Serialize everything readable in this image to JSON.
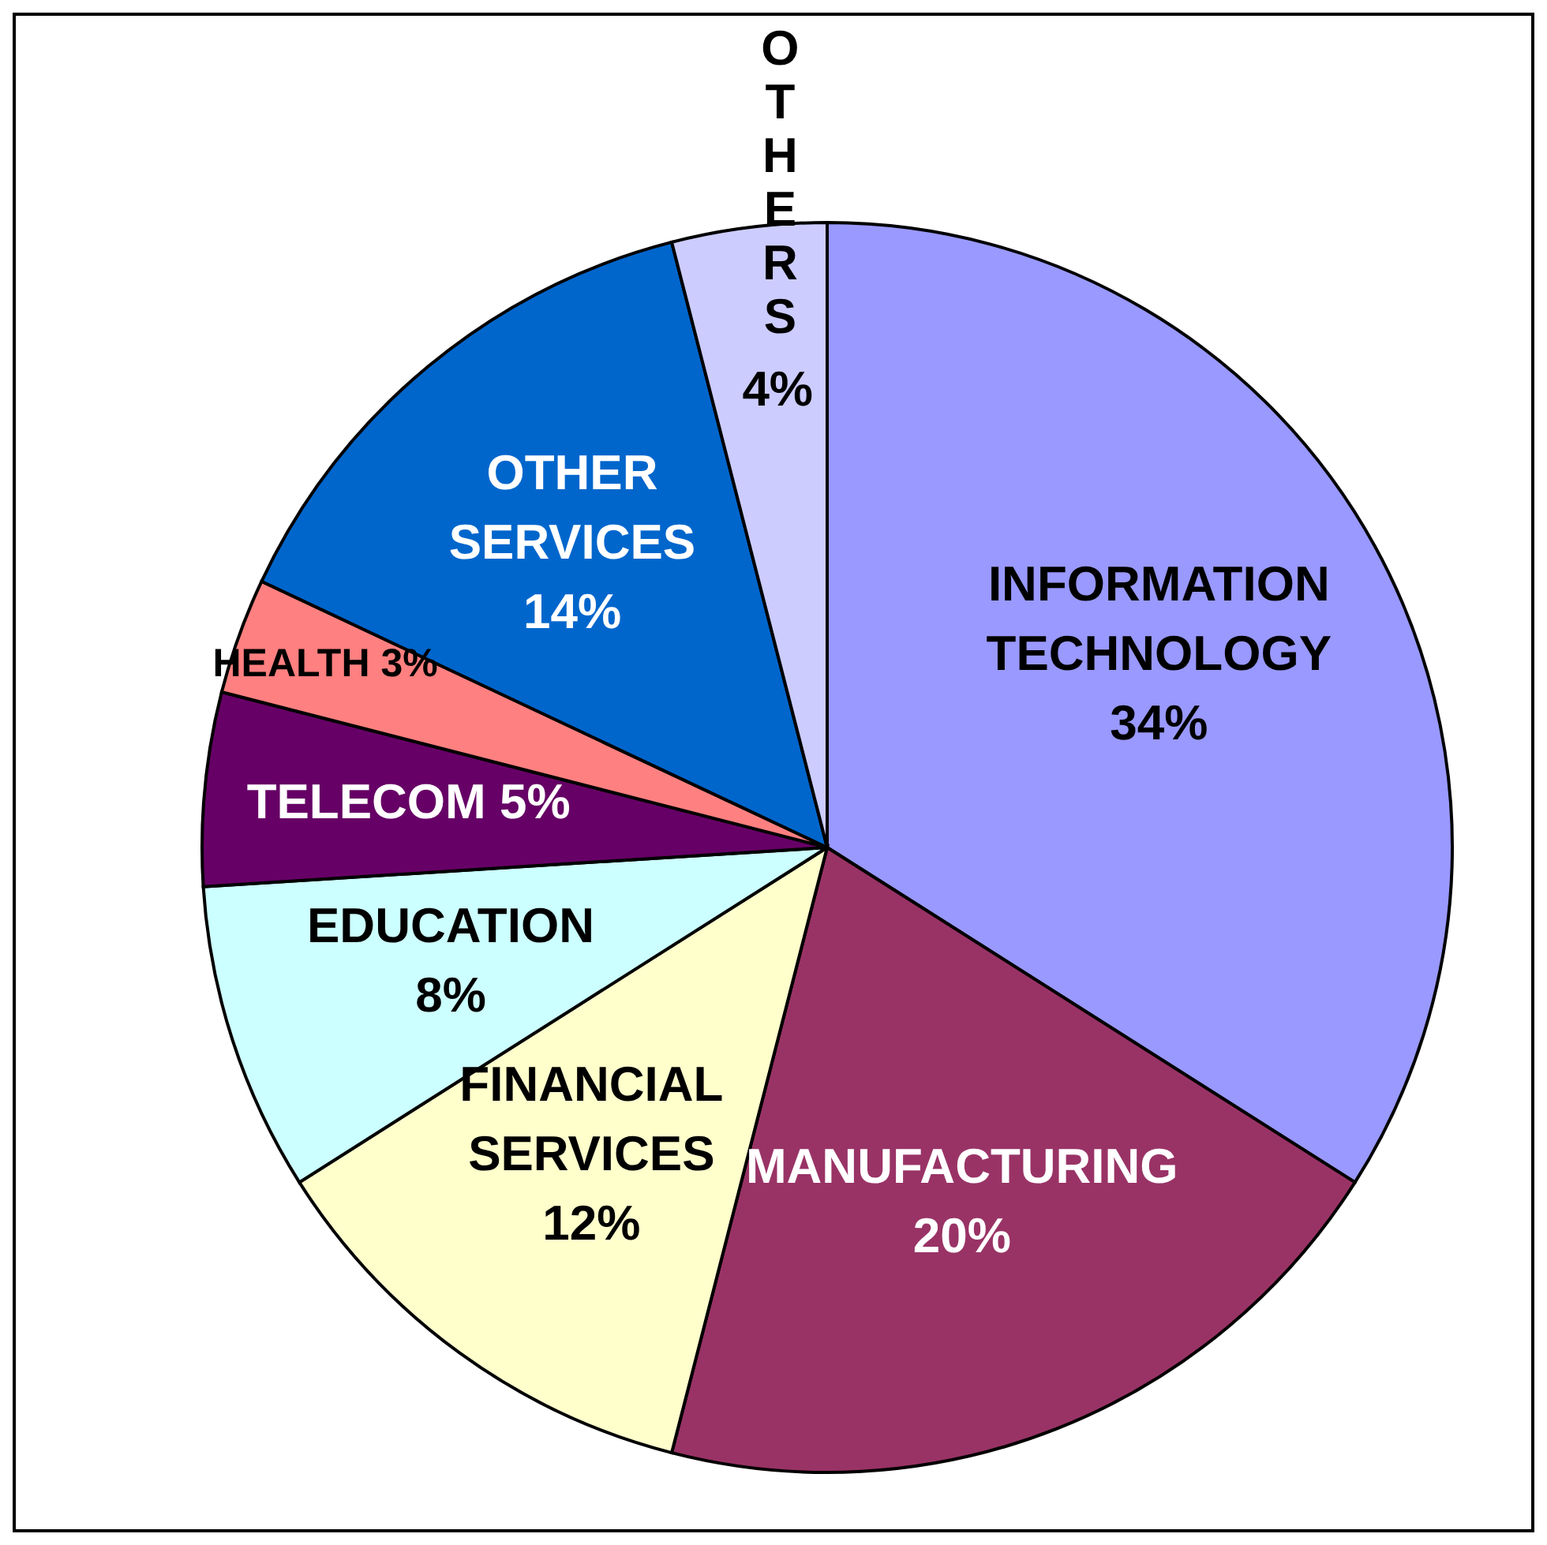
{
  "chart_data": {
    "type": "pie",
    "categories": [
      "INFORMATION TECHNOLOGY",
      "MANUFACTURING",
      "FINANCIAL SERVICES",
      "EDUCATION",
      "TELECOM",
      "HEALTH",
      "OTHER SERVICES",
      "OTHERS"
    ],
    "values": [
      34,
      20,
      12,
      8,
      5,
      3,
      14,
      4
    ],
    "value_labels": [
      "34%",
      "20%",
      "12%",
      "8%",
      "5%",
      "3%",
      "14%",
      "4%"
    ],
    "colors": [
      "#9999ff",
      "#993366",
      "#ffffcc",
      "#ccffff",
      "#660066",
      "#ff8080",
      "#0066cc",
      "#ccccff"
    ]
  }
}
